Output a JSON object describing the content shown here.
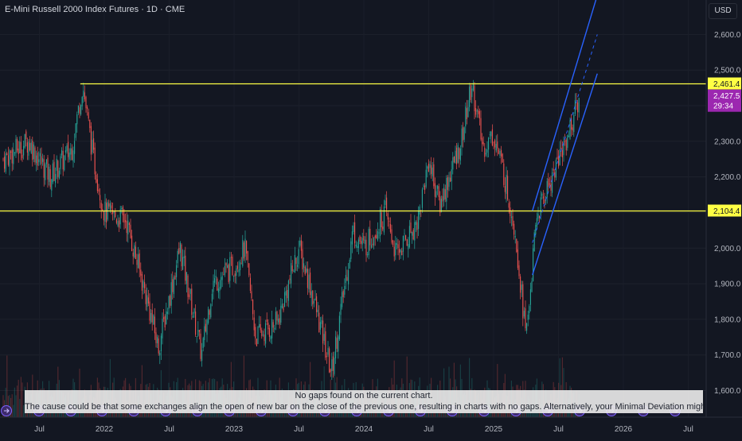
{
  "header": {
    "title": "E-Mini Russell 2000 Index Futures · 1D · CME",
    "currency_button": "USD"
  },
  "colors": {
    "background": "#131722",
    "up": "#26a69a",
    "down": "#ef5350",
    "level_line": "#ffff44",
    "channel": "#2962ff",
    "price_badge": "#9c27b0"
  },
  "notice": {
    "line1": "No gaps found on the current chart.",
    "line2": "The cause could be that some exchanges align the open of new bar on the close of the previous one, resulting in charts with no gaps. Alternatively, your Minimal Deviation might be too high."
  },
  "price_badge": {
    "price": "2,427.5",
    "countdown": "29:34"
  },
  "chart_data": {
    "type": "candlestick",
    "y_axis": {
      "min": 1550,
      "max": 2720,
      "ticks": [
        "2,600.0",
        "2,500.0",
        "2,400.0",
        "2,300.0",
        "2,200.0",
        "2,100.0",
        "2,000.0",
        "1,900.0",
        "1,800.0",
        "1,700.0",
        "1,600.0"
      ]
    },
    "x_axis": {
      "ticks": [
        "Jul",
        "2022",
        "Jul",
        "2023",
        "Jul",
        "2024",
        "Jul",
        "2025",
        "Jul",
        "2026",
        "Jul"
      ]
    },
    "levels": [
      {
        "label": "2,461.4",
        "value": 2461.4
      },
      {
        "label": "2,104.4",
        "value": 2104.4
      }
    ],
    "channel": {
      "start": "2025-04",
      "end": "2025-10",
      "upper": [
        2105,
        2710
      ],
      "lower": [
        1925,
        2490
      ]
    },
    "price_path": [
      [
        "2021-04",
        2250
      ],
      [
        "2021-06",
        2300
      ],
      [
        "2021-08",
        2200
      ],
      [
        "2021-10",
        2280
      ],
      [
        "2021-11",
        2460
      ],
      [
        "2021-12",
        2250
      ],
      [
        "2022-01",
        2100
      ],
      [
        "2022-03",
        2080
      ],
      [
        "2022-05",
        1850
      ],
      [
        "2022-06",
        1720
      ],
      [
        "2022-08",
        2000
      ],
      [
        "2022-10",
        1700
      ],
      [
        "2022-11",
        1900
      ],
      [
        "2023-01",
        1950
      ],
      [
        "2023-02",
        2000
      ],
      [
        "2023-03",
        1750
      ],
      [
        "2023-05",
        1790
      ],
      [
        "2023-07",
        2000
      ],
      [
        "2023-08",
        1900
      ],
      [
        "2023-10",
        1650
      ],
      [
        "2023-12",
        2050
      ],
      [
        "2024-01",
        2000
      ],
      [
        "2024-03",
        2100
      ],
      [
        "2024-04",
        1980
      ],
      [
        "2024-06",
        2080
      ],
      [
        "2024-07",
        2250
      ],
      [
        "2024-08",
        2120
      ],
      [
        "2024-10",
        2300
      ],
      [
        "2024-11",
        2460
      ],
      [
        "2024-12",
        2280
      ],
      [
        "2025-01",
        2320
      ],
      [
        "2025-02",
        2200
      ],
      [
        "2025-03",
        2050
      ],
      [
        "2025-04",
        1750
      ],
      [
        "2025-05",
        2090
      ],
      [
        "2025-07",
        2250
      ],
      [
        "2025-08",
        2330
      ],
      [
        "2025-09",
        2427.5
      ]
    ]
  }
}
